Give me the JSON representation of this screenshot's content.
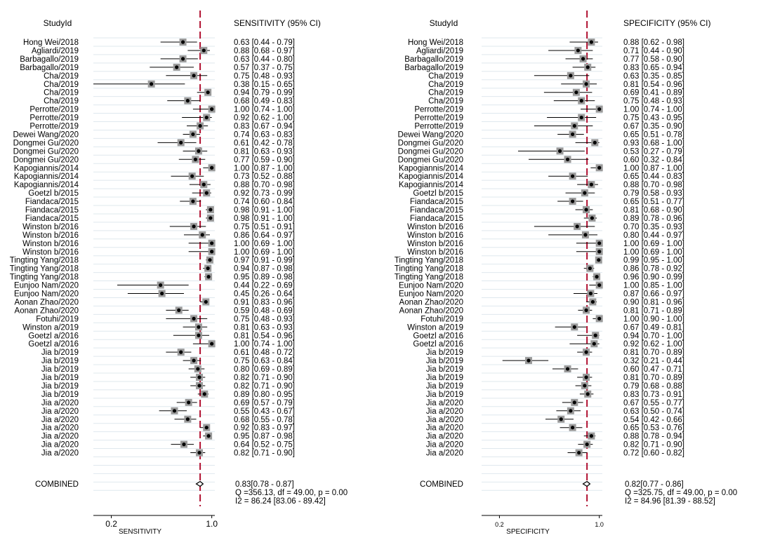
{
  "chart_data": [
    {
      "type": "forest",
      "id": "sens",
      "header_study": "StudyId",
      "header_estimate": "SENSITIVITY (95% CI)",
      "xlabel": "SENSITIVITY",
      "x_scale": "log",
      "xlim": [
        0.15,
        1.05
      ],
      "ticks": [
        {
          "v": 0.2,
          "label": "0.2"
        },
        {
          "v": 1.0,
          "label": "1.0"
        }
      ],
      "pooled_line": 0.83,
      "studies": [
        {
          "name": "Hong Wei/2018",
          "est": 0.63,
          "lo": 0.44,
          "hi": 0.79,
          "ci": "0.63 [0.44 - 0.79]"
        },
        {
          "name": "Agliardi/2019",
          "est": 0.88,
          "lo": 0.68,
          "hi": 0.97,
          "ci": "0.88 [0.68 - 0.97]"
        },
        {
          "name": "Barbagallo/2019",
          "est": 0.63,
          "lo": 0.44,
          "hi": 0.8,
          "ci": "0.63 [0.44 - 0.80]"
        },
        {
          "name": "Barbagallo/2019",
          "est": 0.57,
          "lo": 0.37,
          "hi": 0.75,
          "ci": "0.57 [0.37 - 0.75]"
        },
        {
          "name": "Cha/2019",
          "est": 0.75,
          "lo": 0.48,
          "hi": 0.93,
          "ci": "0.75 [0.48 - 0.93]"
        },
        {
          "name": "Cha/2019",
          "est": 0.38,
          "lo": 0.15,
          "hi": 0.65,
          "ci": "0.38 [0.15 - 0.65]"
        },
        {
          "name": "Cha/2019",
          "est": 0.94,
          "lo": 0.79,
          "hi": 0.99,
          "ci": "0.94 [0.79 - 0.99]"
        },
        {
          "name": "Cha/2019",
          "est": 0.68,
          "lo": 0.49,
          "hi": 0.83,
          "ci": "0.68 [0.49 - 0.83]"
        },
        {
          "name": "Perrotte/2019",
          "est": 1.0,
          "lo": 0.74,
          "hi": 1.0,
          "ci": "1.00 [0.74 - 1.00]"
        },
        {
          "name": "Perrotte/2019",
          "est": 0.92,
          "lo": 0.62,
          "hi": 1.0,
          "ci": "0.92 [0.62 - 1.00]"
        },
        {
          "name": "Perrotte/2019",
          "est": 0.83,
          "lo": 0.67,
          "hi": 0.94,
          "ci": "0.83 [0.67 - 0.94]"
        },
        {
          "name": "Dewei Wang/2020",
          "est": 0.74,
          "lo": 0.63,
          "hi": 0.83,
          "ci": "0.74 [0.63 - 0.83]"
        },
        {
          "name": "Dongmei Gu/2020",
          "est": 0.61,
          "lo": 0.42,
          "hi": 0.78,
          "ci": "0.61 [0.42 - 0.78]"
        },
        {
          "name": "Dongmei Gu/2020",
          "est": 0.81,
          "lo": 0.63,
          "hi": 0.93,
          "ci": "0.81 [0.63 - 0.93]"
        },
        {
          "name": "Dongmei Gu/2020",
          "est": 0.77,
          "lo": 0.59,
          "hi": 0.9,
          "ci": "0.77 [0.59 - 0.90]"
        },
        {
          "name": "Kapogiannis/2014",
          "est": 1.0,
          "lo": 0.87,
          "hi": 1.0,
          "ci": "1.00 [0.87 - 1.00]"
        },
        {
          "name": "Kapogiannis/2014",
          "est": 0.73,
          "lo": 0.52,
          "hi": 0.88,
          "ci": "0.73 [0.52 - 0.88]"
        },
        {
          "name": "Kapogiannis/2014",
          "est": 0.88,
          "lo": 0.7,
          "hi": 0.98,
          "ci": "0.88 [0.70 - 0.98]"
        },
        {
          "name": "Goetzl b/2015",
          "est": 0.92,
          "lo": 0.73,
          "hi": 0.99,
          "ci": "0.92 [0.73 - 0.99]"
        },
        {
          "name": "Fiandaca/2015",
          "est": 0.74,
          "lo": 0.6,
          "hi": 0.84,
          "ci": "0.74 [0.60 - 0.84]"
        },
        {
          "name": "Fiandaca/2015",
          "est": 0.98,
          "lo": 0.91,
          "hi": 1.0,
          "ci": "0.98 [0.91 - 1.00]"
        },
        {
          "name": "Fiandaca/2015",
          "est": 0.98,
          "lo": 0.91,
          "hi": 1.0,
          "ci": "0.98 [0.91 - 1.00]"
        },
        {
          "name": "Winston b/2016",
          "est": 0.75,
          "lo": 0.51,
          "hi": 0.91,
          "ci": "0.75 [0.51 - 0.91]"
        },
        {
          "name": "Winston b/2016",
          "est": 0.86,
          "lo": 0.64,
          "hi": 0.97,
          "ci": "0.86 [0.64 - 0.97]"
        },
        {
          "name": "Winston b/2016",
          "est": 1.0,
          "lo": 0.69,
          "hi": 1.0,
          "ci": "1.00 [0.69 - 1.00]"
        },
        {
          "name": "Winston b/2016",
          "est": 1.0,
          "lo": 0.69,
          "hi": 1.0,
          "ci": "1.00 [0.69 - 1.00]"
        },
        {
          "name": "Tingting Yang/2018",
          "est": 0.97,
          "lo": 0.91,
          "hi": 0.99,
          "ci": "0.97 [0.91 - 0.99]"
        },
        {
          "name": "Tingting Yang/2018",
          "est": 0.94,
          "lo": 0.87,
          "hi": 0.98,
          "ci": "0.94 [0.87 - 0.98]"
        },
        {
          "name": "Tingting Yang/2018",
          "est": 0.95,
          "lo": 0.89,
          "hi": 0.98,
          "ci": "0.95 [0.89 - 0.98]"
        },
        {
          "name": "Eunjoo Nam/2020",
          "est": 0.44,
          "lo": 0.22,
          "hi": 0.69,
          "ci": "0.44 [0.22 - 0.69]"
        },
        {
          "name": "Eunjoo Nam/2020",
          "est": 0.45,
          "lo": 0.26,
          "hi": 0.64,
          "ci": "0.45 [0.26 - 0.64]"
        },
        {
          "name": "Aonan Zhao/2020",
          "est": 0.91,
          "lo": 0.83,
          "hi": 0.96,
          "ci": "0.91 [0.83 - 0.96]"
        },
        {
          "name": "Aonan Zhao/2020",
          "est": 0.59,
          "lo": 0.48,
          "hi": 0.69,
          "ci": "0.59 [0.48 - 0.69]"
        },
        {
          "name": "Fotuhi/2019",
          "est": 0.75,
          "lo": 0.48,
          "hi": 0.93,
          "ci": "0.75 [0.48 - 0.93]"
        },
        {
          "name": "Winston a/2019",
          "est": 0.81,
          "lo": 0.63,
          "hi": 0.93,
          "ci": "0.81 [0.63 - 0.93]"
        },
        {
          "name": "Goetzl a/2016",
          "est": 0.81,
          "lo": 0.54,
          "hi": 0.96,
          "ci": "0.81 [0.54 - 0.96]"
        },
        {
          "name": "Goetzl a/2016",
          "est": 1.0,
          "lo": 0.74,
          "hi": 1.0,
          "ci": "1.00 [0.74 - 1.00]"
        },
        {
          "name": "Jia b/2019",
          "est": 0.61,
          "lo": 0.48,
          "hi": 0.72,
          "ci": "0.61 [0.48 - 0.72]"
        },
        {
          "name": "Jia b/2019",
          "est": 0.75,
          "lo": 0.63,
          "hi": 0.84,
          "ci": "0.75 [0.63 - 0.84]"
        },
        {
          "name": "Jia b/2019",
          "est": 0.8,
          "lo": 0.69,
          "hi": 0.89,
          "ci": "0.80 [0.69 - 0.89]"
        },
        {
          "name": "Jia b/2019",
          "est": 0.82,
          "lo": 0.71,
          "hi": 0.9,
          "ci": "0.82 [0.71 - 0.90]"
        },
        {
          "name": "Jia b/2019",
          "est": 0.82,
          "lo": 0.71,
          "hi": 0.9,
          "ci": "0.82 [0.71 - 0.90]"
        },
        {
          "name": "Jia b/2019",
          "est": 0.89,
          "lo": 0.8,
          "hi": 0.95,
          "ci": "0.89 [0.80 - 0.95]"
        },
        {
          "name": "Jia a/2020",
          "est": 0.69,
          "lo": 0.57,
          "hi": 0.79,
          "ci": "0.69 [0.57 - 0.79]"
        },
        {
          "name": "Jia a/2020",
          "est": 0.55,
          "lo": 0.43,
          "hi": 0.67,
          "ci": "0.55 [0.43 - 0.67]"
        },
        {
          "name": "Jia a/2020",
          "est": 0.68,
          "lo": 0.55,
          "hi": 0.78,
          "ci": "0.68 [0.55 - 0.78]"
        },
        {
          "name": "Jia a/2020",
          "est": 0.92,
          "lo": 0.83,
          "hi": 0.97,
          "ci": "0.92 [0.83 - 0.97]"
        },
        {
          "name": "Jia a/2020",
          "est": 0.95,
          "lo": 0.87,
          "hi": 0.98,
          "ci": "0.95 [0.87 - 0.98]"
        },
        {
          "name": "Jia a/2020",
          "est": 0.64,
          "lo": 0.52,
          "hi": 0.75,
          "ci": "0.64 [0.52 - 0.75]"
        },
        {
          "name": "Jia a/2020",
          "est": 0.82,
          "lo": 0.71,
          "hi": 0.9,
          "ci": "0.82 [0.71 - 0.90]"
        }
      ],
      "combined": {
        "label": "COMBINED",
        "est": 0.83,
        "lo": 0.78,
        "hi": 0.87,
        "lines": [
          "0.83[0.78 - 0.87]",
          "Q =356.13, df = 49.00, p =  0.00",
          "I2 = 86.24 [83.06 - 89.42]"
        ]
      }
    },
    {
      "type": "forest",
      "id": "spec",
      "header_study": "StudyId",
      "header_estimate": "SPECIFICITY (95% CI)",
      "xlabel": "SPECIFICITY",
      "x_scale": "log",
      "xlim": [
        0.15,
        1.05
      ],
      "ticks": [
        {
          "v": 0.2,
          "label": "0.2"
        },
        {
          "v": 1.0,
          "label": "1.0"
        }
      ],
      "pooled_line": 0.82,
      "studies": [
        {
          "name": "Hong Wei/2018",
          "est": 0.88,
          "lo": 0.62,
          "hi": 0.98,
          "ci": "0.88 [0.62 - 0.98]"
        },
        {
          "name": "Agliardi/2019",
          "est": 0.71,
          "lo": 0.44,
          "hi": 0.9,
          "ci": "0.71 [0.44 - 0.90]"
        },
        {
          "name": "Barbagallo/2019",
          "est": 0.77,
          "lo": 0.58,
          "hi": 0.9,
          "ci": "0.77 [0.58 - 0.90]"
        },
        {
          "name": "Barbagallo/2019",
          "est": 0.83,
          "lo": 0.65,
          "hi": 0.94,
          "ci": "0.83 [0.65 - 0.94]"
        },
        {
          "name": "Cha/2019",
          "est": 0.63,
          "lo": 0.35,
          "hi": 0.85,
          "ci": "0.63 [0.35 - 0.85]"
        },
        {
          "name": "Cha/2019",
          "est": 0.81,
          "lo": 0.54,
          "hi": 0.96,
          "ci": "0.81 [0.54 - 0.96]"
        },
        {
          "name": "Cha/2019",
          "est": 0.69,
          "lo": 0.41,
          "hi": 0.89,
          "ci": "0.69 [0.41 - 0.89]"
        },
        {
          "name": "Cha/2019",
          "est": 0.75,
          "lo": 0.48,
          "hi": 0.93,
          "ci": "0.75 [0.48 - 0.93]"
        },
        {
          "name": "Perrotte/2019",
          "est": 1.0,
          "lo": 0.74,
          "hi": 1.0,
          "ci": "1.00 [0.74 - 1.00]"
        },
        {
          "name": "Perrotte/2019",
          "est": 0.75,
          "lo": 0.43,
          "hi": 0.95,
          "ci": "0.75 [0.43 - 0.95]"
        },
        {
          "name": "Perrotte/2019",
          "est": 0.67,
          "lo": 0.35,
          "hi": 0.9,
          "ci": "0.67 [0.35 - 0.90]"
        },
        {
          "name": "Dewei Wang/2020",
          "est": 0.65,
          "lo": 0.51,
          "hi": 0.78,
          "ci": "0.65 [0.51 - 0.78]"
        },
        {
          "name": "Dongmei Gu/2020",
          "est": 0.93,
          "lo": 0.68,
          "hi": 1.0,
          "ci": "0.93 [0.68 - 1.00]"
        },
        {
          "name": "Dongmei Gu/2020",
          "est": 0.53,
          "lo": 0.27,
          "hi": 0.79,
          "ci": "0.53 [0.27 - 0.79]"
        },
        {
          "name": "Dongmei Gu/2020",
          "est": 0.6,
          "lo": 0.32,
          "hi": 0.84,
          "ci": "0.60 [0.32 - 0.84]"
        },
        {
          "name": "Kapogiannis/2014",
          "est": 1.0,
          "lo": 0.87,
          "hi": 1.0,
          "ci": "1.00 [0.87 - 1.00]"
        },
        {
          "name": "Kapogiannis/2014",
          "est": 0.65,
          "lo": 0.44,
          "hi": 0.83,
          "ci": "0.65 [0.44 - 0.83]"
        },
        {
          "name": "Kapogiannis/2014",
          "est": 0.88,
          "lo": 0.7,
          "hi": 0.98,
          "ci": "0.88 [0.70 - 0.98]"
        },
        {
          "name": "Goetzl b/2015",
          "est": 0.79,
          "lo": 0.58,
          "hi": 0.93,
          "ci": "0.79 [0.58 - 0.93]"
        },
        {
          "name": "Fiandaca/2015",
          "est": 0.65,
          "lo": 0.51,
          "hi": 0.77,
          "ci": "0.65 [0.51 - 0.77]"
        },
        {
          "name": "Fiandaca/2015",
          "est": 0.81,
          "lo": 0.68,
          "hi": 0.9,
          "ci": "0.81 [0.68 - 0.90]"
        },
        {
          "name": "Fiandaca/2015",
          "est": 0.89,
          "lo": 0.78,
          "hi": 0.96,
          "ci": "0.89 [0.78 - 0.96]"
        },
        {
          "name": "Winston b/2016",
          "est": 0.7,
          "lo": 0.35,
          "hi": 0.93,
          "ci": "0.70 [0.35 - 0.93]"
        },
        {
          "name": "Winston b/2016",
          "est": 0.8,
          "lo": 0.44,
          "hi": 0.97,
          "ci": "0.80 [0.44 - 0.97]"
        },
        {
          "name": "Winston b/2016",
          "est": 1.0,
          "lo": 0.69,
          "hi": 1.0,
          "ci": "1.00 [0.69 - 1.00]"
        },
        {
          "name": "Winston b/2016",
          "est": 1.0,
          "lo": 0.69,
          "hi": 1.0,
          "ci": "1.00 [0.69 - 1.00]"
        },
        {
          "name": "Tingting Yang/2018",
          "est": 0.99,
          "lo": 0.95,
          "hi": 1.0,
          "ci": "0.99 [0.95 - 1.00]"
        },
        {
          "name": "Tingting Yang/2018",
          "est": 0.86,
          "lo": 0.78,
          "hi": 0.92,
          "ci": "0.86 [0.78 - 0.92]"
        },
        {
          "name": "Tingting Yang/2018",
          "est": 0.96,
          "lo": 0.9,
          "hi": 0.99,
          "ci": "0.96 [0.90 - 0.99]"
        },
        {
          "name": "Eunjoo Nam/2020",
          "est": 1.0,
          "lo": 0.85,
          "hi": 1.0,
          "ci": "1.00 [0.85 - 1.00]"
        },
        {
          "name": "Eunjoo Nam/2020",
          "est": 0.87,
          "lo": 0.66,
          "hi": 0.97,
          "ci": "0.87 [0.66 - 0.97]"
        },
        {
          "name": "Aonan Zhao/2020",
          "est": 0.9,
          "lo": 0.81,
          "hi": 0.96,
          "ci": "0.90 [0.81 - 0.96]"
        },
        {
          "name": "Aonan Zhao/2020",
          "est": 0.81,
          "lo": 0.71,
          "hi": 0.89,
          "ci": "0.81 [0.71 - 0.89]"
        },
        {
          "name": "Fotuhi/2019",
          "est": 1.0,
          "lo": 0.9,
          "hi": 1.0,
          "ci": "1.00 [0.90 - 1.00]"
        },
        {
          "name": "Winston a/2019",
          "est": 0.67,
          "lo": 0.49,
          "hi": 0.81,
          "ci": "0.67 [0.49 - 0.81]"
        },
        {
          "name": "Goetzl a/2016",
          "est": 0.94,
          "lo": 0.7,
          "hi": 1.0,
          "ci": "0.94 [0.70 - 1.00]"
        },
        {
          "name": "Goetzl a/2016",
          "est": 0.92,
          "lo": 0.62,
          "hi": 1.0,
          "ci": "0.92 [0.62 - 1.00]"
        },
        {
          "name": "Jia b/2019",
          "est": 0.81,
          "lo": 0.7,
          "hi": 0.89,
          "ci": "0.81 [0.70 - 0.89]"
        },
        {
          "name": "Jia b/2019",
          "est": 0.32,
          "lo": 0.21,
          "hi": 0.44,
          "ci": "0.32 [0.21 - 0.44]"
        },
        {
          "name": "Jia b/2019",
          "est": 0.6,
          "lo": 0.47,
          "hi": 0.71,
          "ci": "0.60 [0.47 - 0.71]"
        },
        {
          "name": "Jia b/2019",
          "est": 0.81,
          "lo": 0.7,
          "hi": 0.89,
          "ci": "0.81 [0.70 - 0.89]"
        },
        {
          "name": "Jia b/2019",
          "est": 0.79,
          "lo": 0.68,
          "hi": 0.88,
          "ci": "0.79 [0.68 - 0.88]"
        },
        {
          "name": "Jia b/2019",
          "est": 0.83,
          "lo": 0.73,
          "hi": 0.91,
          "ci": "0.83 [0.73 - 0.91]"
        },
        {
          "name": "Jia a/2020",
          "est": 0.67,
          "lo": 0.55,
          "hi": 0.77,
          "ci": "0.67 [0.55 - 0.77]"
        },
        {
          "name": "Jia a/2020",
          "est": 0.63,
          "lo": 0.5,
          "hi": 0.74,
          "ci": "0.63 [0.50 - 0.74]"
        },
        {
          "name": "Jia a/2020",
          "est": 0.54,
          "lo": 0.42,
          "hi": 0.66,
          "ci": "0.54 [0.42 - 0.66]"
        },
        {
          "name": "Jia a/2020",
          "est": 0.65,
          "lo": 0.53,
          "hi": 0.76,
          "ci": "0.65 [0.53 - 0.76]"
        },
        {
          "name": "Jia a/2020",
          "est": 0.88,
          "lo": 0.78,
          "hi": 0.94,
          "ci": "0.88 [0.78 - 0.94]"
        },
        {
          "name": "Jia a/2020",
          "est": 0.82,
          "lo": 0.71,
          "hi": 0.9,
          "ci": "0.82 [0.71 - 0.90]"
        },
        {
          "name": "Jia a/2020",
          "est": 0.72,
          "lo": 0.6,
          "hi": 0.82,
          "ci": "0.72 [0.60 - 0.82]"
        }
      ],
      "combined": {
        "label": "COMBINED",
        "est": 0.82,
        "lo": 0.77,
        "hi": 0.86,
        "lines": [
          "0.82[0.77 - 0.86]",
          "Q =325.75, df = 49.00, p =  0.00",
          "I2 = 84.96 [81.39 - 88.52]"
        ]
      }
    }
  ],
  "colors": {
    "pooled_line": "#b01030",
    "marker_box": "#9a9a9a",
    "marker_dot": "#000000",
    "grid": "#dfe8ee"
  }
}
